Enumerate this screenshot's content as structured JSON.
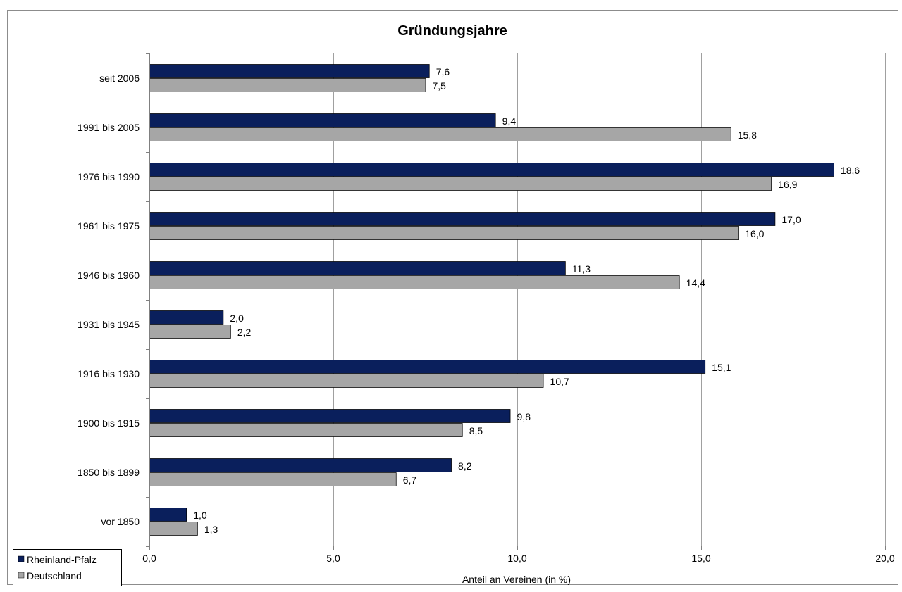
{
  "chart_data": {
    "type": "bar",
    "orientation": "horizontal",
    "title": "Gründungsjahre",
    "xlabel": "Anteil an Vereinen (in %)",
    "ylabel": "",
    "xlim": [
      0,
      20
    ],
    "x_ticks": [
      0,
      5,
      10,
      15,
      20
    ],
    "x_tick_labels": [
      "0,0",
      "5,0",
      "10,0",
      "15,0",
      "20,0"
    ],
    "grid": "vertical",
    "legend_position": "bottom-left",
    "categories": [
      "seit 2006",
      "1991 bis 2005",
      "1976 bis 1990",
      "1961 bis 1975",
      "1946 bis 1960",
      "1931 bis 1945",
      "1916 bis 1930",
      "1900 bis 1915",
      "1850 bis 1899",
      "vor 1850"
    ],
    "series": [
      {
        "name": "Rheinland-Pfalz",
        "color": "#0a1f5c",
        "values": [
          7.6,
          9.4,
          18.6,
          17.0,
          11.3,
          2.0,
          15.1,
          9.8,
          8.2,
          1.0
        ],
        "labels": [
          "7,6",
          "9,4",
          "18,6",
          "17,0",
          "11,3",
          "2,0",
          "15,1",
          "9,8",
          "8,2",
          "1,0"
        ]
      },
      {
        "name": "Deutschland",
        "color": "#a6a6a6",
        "values": [
          7.5,
          15.8,
          16.9,
          16.0,
          14.4,
          2.2,
          10.7,
          8.5,
          6.7,
          1.3
        ],
        "labels": [
          "7,5",
          "15,8",
          "16,9",
          "16,0",
          "14,4",
          "2,2",
          "10,7",
          "8,5",
          "6,7",
          "1,3"
        ]
      }
    ]
  }
}
